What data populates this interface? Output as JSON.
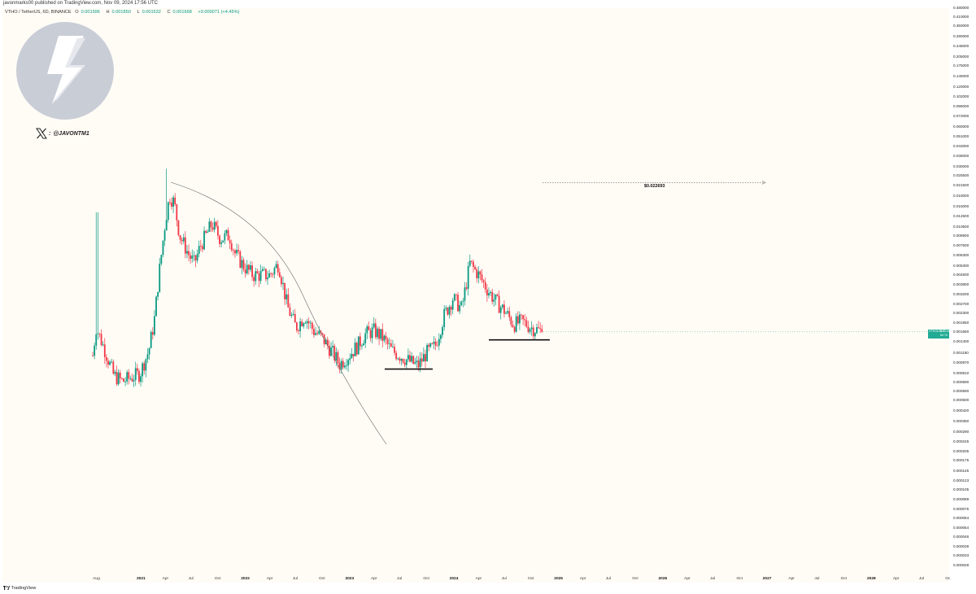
{
  "header": {
    "published": "javonmarks00 published on TradingView.com, Nov 09, 2024 17:56 UTC",
    "symbol": "VTHO / TetherUS, 6D, BINANCE",
    "ohlc": {
      "o_label": "O",
      "o": "0.001596",
      "h_label": "H",
      "h": "0.001850",
      "l_label": "L",
      "l": "0.001532",
      "c_label": "C",
      "c": "0.001668",
      "change": "+0.000071 (+4.45%)"
    }
  },
  "watermark": {
    "logo": "lightning-bolt-icon",
    "handle_icon": "x-logo-icon",
    "handle": "@JAVONTM1"
  },
  "price_axis": {
    "ticks": [
      "0.480000",
      "0.410000",
      "0.350000",
      "0.290000",
      "0.245000",
      "0.205000",
      "0.175000",
      "0.145000",
      "0.120000",
      "0.102000",
      "0.086000",
      "0.072000",
      "0.060000",
      "0.051000",
      "0.043000",
      "0.036000",
      "0.030000",
      "0.025500",
      "0.021500",
      "0.018000",
      "0.015000",
      "0.012500",
      "0.010500",
      "0.008900",
      "0.007500",
      "0.006300",
      "0.005300",
      "0.004500",
      "0.003800",
      "0.003200",
      "0.002700",
      "0.002300",
      "0.001950",
      "0.001660",
      "0.001400",
      "0.001150",
      "0.000970",
      "0.000810",
      "0.000690",
      "0.000590",
      "0.000500",
      "0.000420",
      "0.000350",
      "0.000290",
      "0.000245",
      "0.000205",
      "0.000175",
      "0.000145",
      "0.000123",
      "0.000105",
      "0.000089",
      "0.000075",
      "0.000064",
      "0.000054",
      "0.000046",
      "0.000039",
      "0.000033",
      "0.000028"
    ]
  },
  "last_price_tag": {
    "symbol": "VTHOUSDT",
    "price": "0.001668",
    "countdown": "6d 7h"
  },
  "time_axis": {
    "ticks": [
      {
        "label": "Aug",
        "major": false
      },
      {
        "label": "2021",
        "major": true
      },
      {
        "label": "Apr",
        "major": false
      },
      {
        "label": "Jul",
        "major": false
      },
      {
        "label": "Oct",
        "major": false
      },
      {
        "label": "2022",
        "major": true
      },
      {
        "label": "Apr",
        "major": false
      },
      {
        "label": "Jul",
        "major": false
      },
      {
        "label": "Oct",
        "major": false
      },
      {
        "label": "2023",
        "major": true
      },
      {
        "label": "Apr",
        "major": false
      },
      {
        "label": "Jul",
        "major": false
      },
      {
        "label": "Oct",
        "major": false
      },
      {
        "label": "2024",
        "major": true
      },
      {
        "label": "Apr",
        "major": false
      },
      {
        "label": "Jul",
        "major": false
      },
      {
        "label": "Oct",
        "major": false
      },
      {
        "label": "2025",
        "major": true
      },
      {
        "label": "Apr",
        "major": false
      },
      {
        "label": "Jul",
        "major": false
      },
      {
        "label": "Oct",
        "major": false
      },
      {
        "label": "2026",
        "major": true
      },
      {
        "label": "Apr",
        "major": false
      },
      {
        "label": "Jul",
        "major": false
      },
      {
        "label": "Oct",
        "major": false
      },
      {
        "label": "2027",
        "major": true
      },
      {
        "label": "Apr",
        "major": false
      },
      {
        "label": "Jul",
        "major": false
      },
      {
        "label": "Oct",
        "major": false
      },
      {
        "label": "2028",
        "major": true
      },
      {
        "label": "Apr",
        "major": false
      },
      {
        "label": "Jul",
        "major": false
      },
      {
        "label": "Oc",
        "major": false
      }
    ]
  },
  "annotations": {
    "target_label": "$0.022693"
  },
  "footer": {
    "brand": "TradingView"
  },
  "colors": {
    "up": "#089981",
    "down": "#f23645",
    "plot_bg": "#fffcf6",
    "price_tag": "#22ab94",
    "annotation": "#111111"
  },
  "chart_data": {
    "type": "candlestick",
    "symbol": "VTHO / TetherUS",
    "interval": "6D",
    "exchange": "BINANCE",
    "y_scale": "log",
    "ylim": [
      2.8e-05,
      0.48
    ],
    "x_range": [
      "2020-07",
      "2028-10"
    ],
    "last_close": 0.001668,
    "key_levels": {
      "target": 0.022693,
      "support_2023": 0.00087,
      "support_2024": 0.00145
    },
    "close_series": [
      {
        "date": "2020-07-20",
        "close": 0.0011
      },
      {
        "date": "2020-08-01",
        "close": 0.0018
      },
      {
        "date": "2020-09-01",
        "close": 0.0012
      },
      {
        "date": "2020-10-01",
        "close": 0.00078
      },
      {
        "date": "2020-11-01",
        "close": 0.0007
      },
      {
        "date": "2020-12-01",
        "close": 0.00075
      },
      {
        "date": "2021-01-01",
        "close": 0.0008
      },
      {
        "date": "2021-02-01",
        "close": 0.0012
      },
      {
        "date": "2021-02-20",
        "close": 0.002
      },
      {
        "date": "2021-03-10",
        "close": 0.0048
      },
      {
        "date": "2021-04-01",
        "close": 0.012
      },
      {
        "date": "2021-04-15",
        "close": 0.018
      },
      {
        "date": "2021-05-01",
        "close": 0.016
      },
      {
        "date": "2021-05-20",
        "close": 0.009
      },
      {
        "date": "2021-06-20",
        "close": 0.0065
      },
      {
        "date": "2021-07-10",
        "close": 0.0055
      },
      {
        "date": "2021-08-01",
        "close": 0.0075
      },
      {
        "date": "2021-09-10",
        "close": 0.011
      },
      {
        "date": "2021-10-10",
        "close": 0.0085
      },
      {
        "date": "2021-11-10",
        "close": 0.009
      },
      {
        "date": "2021-12-01",
        "close": 0.0065
      },
      {
        "date": "2022-01-01",
        "close": 0.0052
      },
      {
        "date": "2022-02-01",
        "close": 0.0045
      },
      {
        "date": "2022-03-01",
        "close": 0.0045
      },
      {
        "date": "2022-04-01",
        "close": 0.0045
      },
      {
        "date": "2022-05-01",
        "close": 0.0055
      },
      {
        "date": "2022-06-01",
        "close": 0.0026
      },
      {
        "date": "2022-07-01",
        "close": 0.0018
      },
      {
        "date": "2022-08-01",
        "close": 0.0022
      },
      {
        "date": "2022-09-01",
        "close": 0.0017
      },
      {
        "date": "2022-10-01",
        "close": 0.0015
      },
      {
        "date": "2022-11-01",
        "close": 0.0012
      },
      {
        "date": "2022-12-01",
        "close": 0.00095
      },
      {
        "date": "2023-01-01",
        "close": 0.0011
      },
      {
        "date": "2023-02-01",
        "close": 0.0013
      },
      {
        "date": "2023-03-01",
        "close": 0.0016
      },
      {
        "date": "2023-04-01",
        "close": 0.0017
      },
      {
        "date": "2023-05-01",
        "close": 0.0015
      },
      {
        "date": "2023-06-01",
        "close": 0.0012
      },
      {
        "date": "2023-07-01",
        "close": 0.0011
      },
      {
        "date": "2023-08-01",
        "close": 0.001
      },
      {
        "date": "2023-09-01",
        "close": 0.00092
      },
      {
        "date": "2023-10-01",
        "close": 0.00115
      },
      {
        "date": "2023-11-01",
        "close": 0.0013
      },
      {
        "date": "2023-12-01",
        "close": 0.0022
      },
      {
        "date": "2024-01-01",
        "close": 0.003
      },
      {
        "date": "2024-02-01",
        "close": 0.0025
      },
      {
        "date": "2024-03-01",
        "close": 0.0055
      },
      {
        "date": "2024-04-01",
        "close": 0.0045
      },
      {
        "date": "2024-05-01",
        "close": 0.0035
      },
      {
        "date": "2024-06-01",
        "close": 0.0028
      },
      {
        "date": "2024-07-01",
        "close": 0.0024
      },
      {
        "date": "2024-08-01",
        "close": 0.0019
      },
      {
        "date": "2024-09-01",
        "close": 0.002
      },
      {
        "date": "2024-10-01",
        "close": 0.0018
      },
      {
        "date": "2024-11-09",
        "close": 0.001668
      }
    ]
  }
}
